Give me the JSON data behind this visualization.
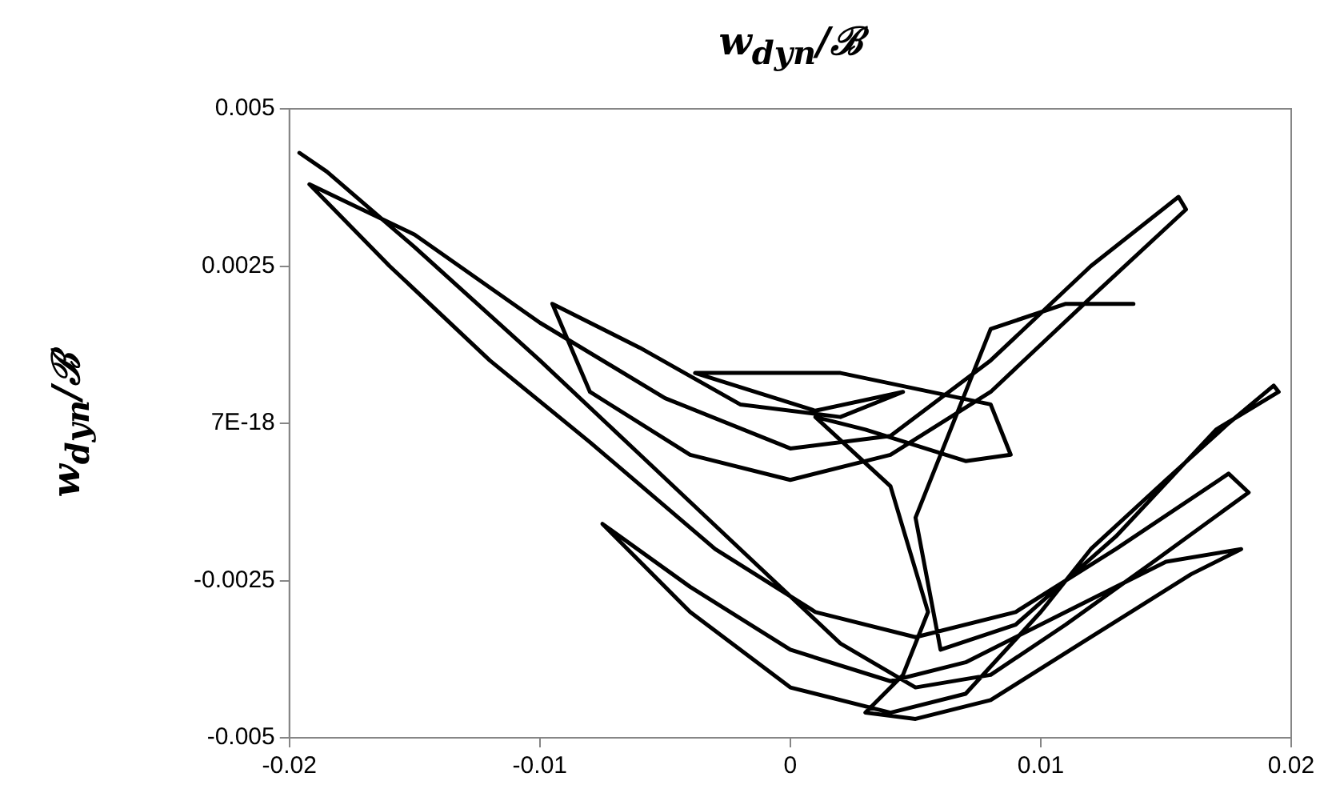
{
  "chart_data": {
    "type": "line",
    "title": "w$_{dyn}$/ℬ",
    "ylabel": "w$_{dyn}$/ℬ",
    "x": [
      -0.0196,
      -0.0185,
      -0.015,
      -0.01,
      -0.006,
      -0.002,
      0.002,
      0.005,
      0.008,
      0.011,
      0.0145,
      0.0183,
      0.0175,
      0.013,
      0.009,
      0.005,
      0.001,
      -0.003,
      -0.008,
      -0.012,
      -0.016,
      -0.0192,
      -0.015,
      -0.01,
      -0.005,
      0,
      0.004,
      0.008,
      0.012,
      0.0155,
      0.0158,
      0.012,
      0.008,
      0.004,
      0,
      -0.004,
      -0.008,
      -0.0095,
      -0.006,
      -0.002,
      0.002,
      0.0045,
      0.001,
      -0.0038,
      0.002,
      0.008,
      0.0088,
      0.007,
      0.003,
      0.001,
      0.004,
      0.0055,
      0.0045,
      0.003,
      0.005,
      0.008,
      0.012,
      0.016,
      0.018,
      0.015,
      0.011,
      0.007,
      0.004,
      0,
      -0.004,
      -0.0075,
      -0.004,
      0,
      0.004,
      0.007,
      0.01,
      0.012,
      0.015,
      0.0175,
      0.0193,
      0.0195,
      0.017,
      0.013,
      0.009,
      0.006,
      0.005,
      0.008,
      0.011,
      0.0137
    ],
    "series": [
      {
        "color": "#000000",
        "values": [
          0.0043,
          0.004,
          0.0028,
          0.001,
          -0.0005,
          -0.002,
          -0.0035,
          -0.0042,
          -0.004,
          -0.0032,
          -0.0022,
          -0.0011,
          -0.0008,
          -0.002,
          -0.003,
          -0.0034,
          -0.003,
          -0.002,
          -0.0003,
          0.001,
          0.0025,
          0.0038,
          0.003,
          0.0016,
          0.0004,
          -0.0004,
          -0.0002,
          0.001,
          0.0025,
          0.0036,
          0.0034,
          0.002,
          0.0005,
          -0.0005,
          -0.0009,
          -0.0005,
          0.0005,
          0.0019,
          0.0012,
          0.0003,
          0.0001,
          0.0005,
          0.0002,
          0.0008,
          0.0008,
          0.0003,
          -0.0005,
          -0.0006,
          -0.0001,
          0.0001,
          -0.001,
          -0.003,
          -0.004,
          -0.0046,
          -0.0047,
          -0.0044,
          -0.0034,
          -0.0024,
          -0.002,
          -0.0022,
          -0.003,
          -0.0038,
          -0.0041,
          -0.0036,
          -0.0026,
          -0.0016,
          -0.003,
          -0.0042,
          -0.0046,
          -0.0043,
          -0.003,
          -0.002,
          -0.0009,
          0,
          0.0006,
          0.0005,
          -0.0001,
          -0.0018,
          -0.0032,
          -0.0036,
          -0.0015,
          0.0015,
          0.0019,
          0.0019
        ]
      }
    ],
    "xlim": [
      -0.02,
      0.02
    ],
    "xticks": [
      -0.02,
      -0.01,
      0,
      0.01,
      0.02
    ],
    "ylim": [
      -0.005,
      0.005
    ],
    "yticks": [
      -0.005,
      -0.0025,
      {
        "value": 0,
        "label": "7E-18"
      },
      0.0025,
      0.005
    ],
    "marker": "none",
    "line_style": "solid",
    "grid": false,
    "legend": false
  }
}
